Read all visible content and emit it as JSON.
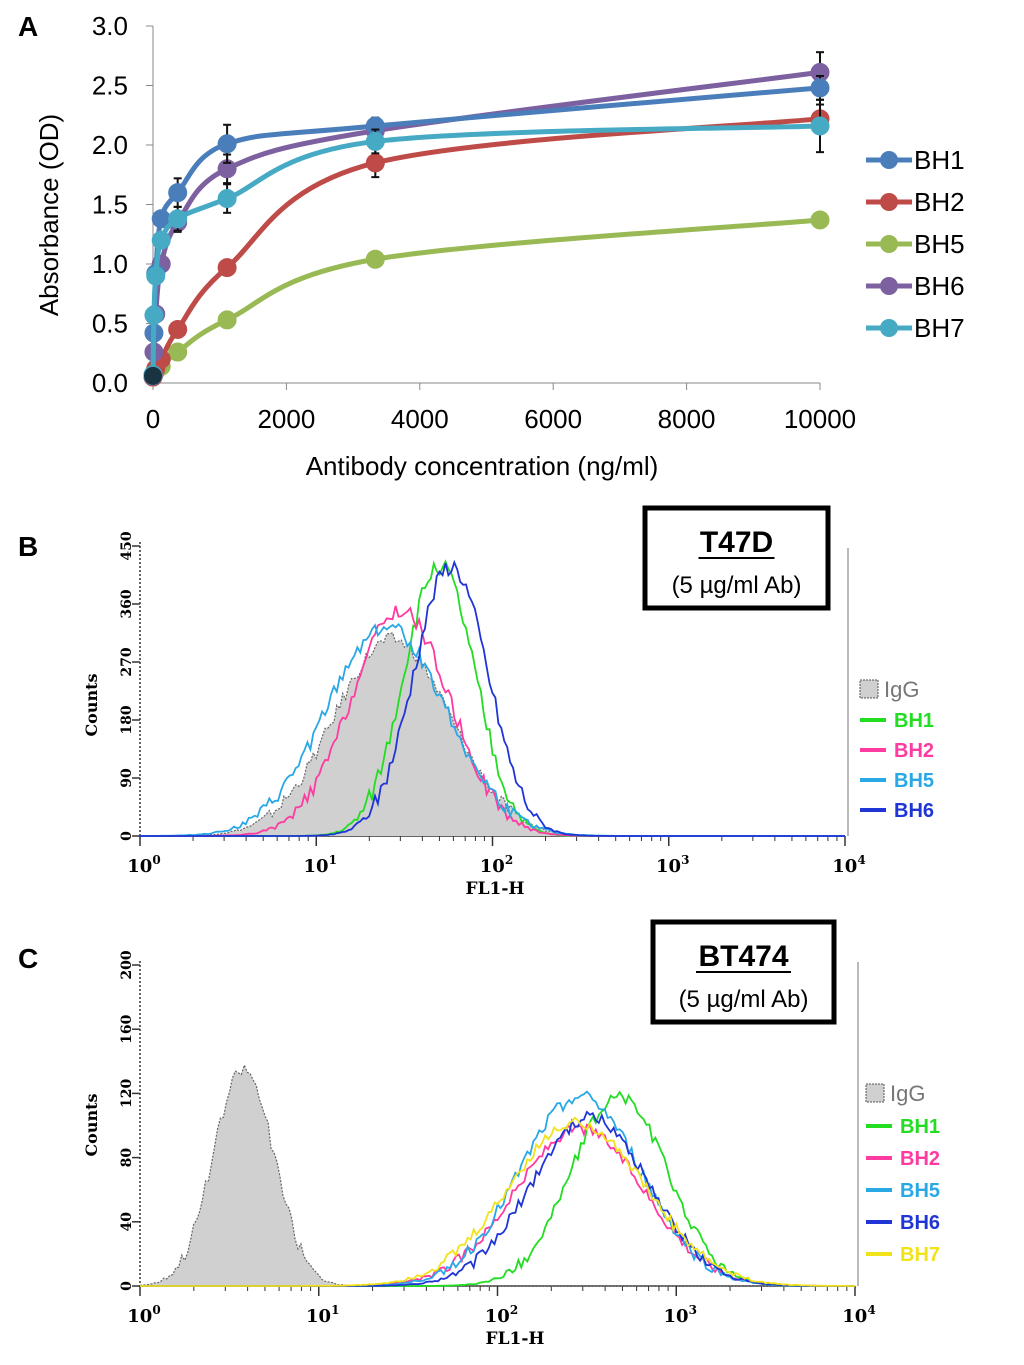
{
  "chart_data": [
    {
      "panel_label": "A",
      "type": "line",
      "xlabel": "Antibody concentration (ng/ml)",
      "ylabel": "Absorbance (OD)",
      "xlim": [
        0,
        10000
      ],
      "ylim": [
        0,
        3.0
      ],
      "x_ticks": [
        "0",
        "2000",
        "4000",
        "6000",
        "8000",
        "10000"
      ],
      "y_ticks": [
        "0.0",
        "0.5",
        "1.0",
        "1.5",
        "2.0",
        "2.5",
        "3.0"
      ],
      "x_tick_values": [
        0,
        2000,
        4000,
        6000,
        8000,
        10000
      ],
      "y_tick_values": [
        0,
        0.5,
        1.0,
        1.5,
        2.0,
        2.5,
        3.0
      ],
      "x": [
        0,
        14,
        41,
        123,
        370,
        1111,
        3333,
        10000
      ],
      "legend_position": "right",
      "series": [
        {
          "name": "BH1",
          "color": "#4a7ebb",
          "values": [
            0.06,
            0.42,
            0.92,
            1.38,
            1.6,
            2.01,
            2.16,
            2.48
          ],
          "errors": [
            0,
            0,
            0,
            0.05,
            0.12,
            0.16,
            0.07,
            0.1
          ]
        },
        {
          "name": "BH2",
          "color": "#be4b48",
          "values": [
            0.05,
            0.08,
            0.12,
            0.2,
            0.45,
            0.97,
            1.85,
            2.22
          ],
          "errors": [
            0,
            0,
            0,
            0,
            0.03,
            0.05,
            0.12,
            0.12
          ]
        },
        {
          "name": "BH5",
          "color": "#98b954",
          "values": [
            0.05,
            0.07,
            0.1,
            0.14,
            0.26,
            0.53,
            1.04,
            1.37
          ],
          "errors": [
            0,
            0,
            0,
            0,
            0.02,
            0.03,
            0.03,
            0.05
          ]
        },
        {
          "name": "BH6",
          "color": "#7d60a0",
          "values": [
            0.06,
            0.26,
            0.58,
            1.0,
            1.35,
            1.8,
            2.12,
            2.61
          ],
          "errors": [
            0,
            0,
            0,
            0.05,
            0.08,
            0.12,
            0.08,
            0.17
          ]
        },
        {
          "name": "BH7",
          "color": "#46aac5",
          "values": [
            0.07,
            0.57,
            0.9,
            1.2,
            1.38,
            1.55,
            2.03,
            2.16
          ],
          "errors": [
            0,
            0,
            0,
            0.05,
            0.1,
            0.12,
            0.1,
            0.22
          ]
        }
      ]
    },
    {
      "panel_label": "B",
      "type": "area",
      "title": "T47D",
      "subtitle": "(5 µg/ml Ab)",
      "xlabel": "FL1-H",
      "ylabel": "Counts",
      "x_scale": "log",
      "xlim": [
        1,
        10000
      ],
      "ylim": [
        0,
        450
      ],
      "x_ticks": [
        {
          "base": "10",
          "exp": "0"
        },
        {
          "base": "10",
          "exp": "1"
        },
        {
          "base": "10",
          "exp": "2"
        },
        {
          "base": "10",
          "exp": "3"
        },
        {
          "base": "10",
          "exp": "4"
        }
      ],
      "x_tick_values": [
        1,
        10,
        100,
        1000,
        10000
      ],
      "y_ticks": [
        "0",
        "90",
        "180",
        "270",
        "360",
        "450"
      ],
      "y_tick_values": [
        0,
        90,
        180,
        270,
        360,
        450
      ],
      "legend_position": "right",
      "series": [
        {
          "name": "IgG",
          "color": "#999999",
          "fill": true,
          "peak_x": 27,
          "peak_y": 305,
          "sigma_decades": 0.33
        },
        {
          "name": "BH1",
          "color": "#22dd22",
          "peak_x": 50,
          "peak_y": 420,
          "sigma_decades": 0.2
        },
        {
          "name": "BH2",
          "color": "#ff3aa0",
          "peak_x": 30,
          "peak_y": 350,
          "sigma_decades": 0.28
        },
        {
          "name": "BH5",
          "color": "#29a8e6",
          "peak_x": 25,
          "peak_y": 325,
          "sigma_decades": 0.34
        },
        {
          "name": "BH6",
          "color": "#1f35d6",
          "peak_x": 58,
          "peak_y": 420,
          "sigma_decades": 0.21
        }
      ]
    },
    {
      "panel_label": "C",
      "type": "area",
      "title": "BT474",
      "subtitle": "(5 µg/ml Ab)",
      "xlabel": "FL1-H",
      "ylabel": "Counts",
      "x_scale": "log",
      "xlim": [
        1,
        10000
      ],
      "ylim": [
        0,
        200
      ],
      "x_ticks": [
        {
          "base": "10",
          "exp": "0"
        },
        {
          "base": "10",
          "exp": "1"
        },
        {
          "base": "10",
          "exp": "2"
        },
        {
          "base": "10",
          "exp": "3"
        },
        {
          "base": "10",
          "exp": "4"
        }
      ],
      "x_tick_values": [
        1,
        10,
        100,
        1000,
        10000
      ],
      "y_ticks": [
        "0",
        "40",
        "80",
        "120",
        "160",
        "200"
      ],
      "y_tick_values": [
        0,
        40,
        80,
        120,
        160,
        200
      ],
      "legend_position": "right",
      "series": [
        {
          "name": "IgG",
          "color": "#999999",
          "fill": true,
          "peak_x": 3.8,
          "peak_y": 135,
          "sigma_decades": 0.17
        },
        {
          "name": "BH1",
          "color": "#22dd22",
          "peak_x": 480,
          "peak_y": 118,
          "sigma_decades": 0.27
        },
        {
          "name": "BH2",
          "color": "#ff3aa0",
          "peak_x": 290,
          "peak_y": 98,
          "sigma_decades": 0.36
        },
        {
          "name": "BH5",
          "color": "#29a8e6",
          "peak_x": 290,
          "peak_y": 118,
          "sigma_decades": 0.34
        },
        {
          "name": "BH6",
          "color": "#1f35d6",
          "peak_x": 330,
          "peak_y": 105,
          "sigma_decades": 0.33
        },
        {
          "name": "BH7",
          "color": "#f2e21a",
          "peak_x": 280,
          "peak_y": 102,
          "sigma_decades": 0.38
        }
      ]
    }
  ]
}
